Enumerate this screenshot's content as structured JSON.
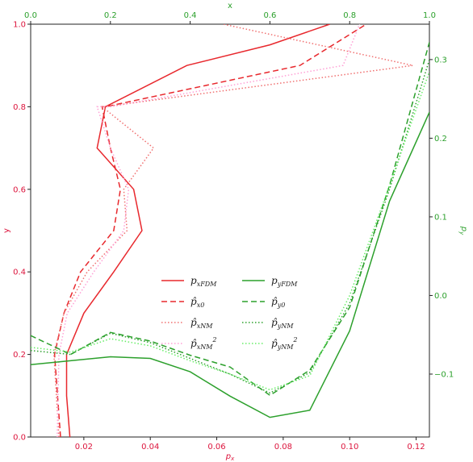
{
  "chart_data": {
    "type": "line",
    "axes": {
      "bottom": {
        "label": "p_x",
        "lim": [
          0.004,
          0.124
        ],
        "ticks": [
          0.02,
          0.04,
          0.06,
          0.08,
          0.1,
          0.12
        ],
        "tick_labels": [
          "0.02",
          "0.04",
          "0.06",
          "0.08",
          "0.10",
          "0.12"
        ],
        "color": "#dc143c"
      },
      "left": {
        "label": "y",
        "lim": [
          0,
          1
        ],
        "ticks": [
          0,
          0.2,
          0.4,
          0.6,
          0.8,
          1.0
        ],
        "tick_labels": [
          "0.0",
          "0.2",
          "0.4",
          "0.6",
          "0.8",
          "1.0"
        ],
        "color": "#dc143c"
      },
      "top": {
        "label": "x",
        "lim": [
          0,
          1
        ],
        "ticks": [
          0,
          0.2,
          0.4,
          0.6,
          0.8,
          1.0
        ],
        "tick_labels": [
          "0.0",
          "0.2",
          "0.4",
          "0.6",
          "0.8",
          "1.0"
        ],
        "color": "#2ca02c"
      },
      "right": {
        "label": "p_y",
        "lim": [
          -0.18,
          0.345
        ],
        "ticks": [
          -0.1,
          0.0,
          0.1,
          0.2,
          0.3
        ],
        "tick_labels": [
          "−0.1",
          "0.0",
          "0.1",
          "0.2",
          "0.3"
        ],
        "color": "#2ca02c"
      }
    },
    "grid": false,
    "legend_position": "center",
    "red_series": [
      {
        "name": "p_{xFDM}",
        "legend_text": "p",
        "legend_sub": "xFDM",
        "legend_hat": false,
        "legend_sup": "",
        "color": "#e8282d",
        "dash": "",
        "x": [
          0.0158,
          0.0148,
          0.0148,
          0.02,
          0.029,
          0.0375,
          0.035,
          0.024,
          0.0265,
          0.051,
          0.076,
          0.094
        ],
        "y": [
          0.0,
          0.1,
          0.2,
          0.3,
          0.4,
          0.5,
          0.6,
          0.7,
          0.8,
          0.9,
          0.95,
          1.0
        ]
      },
      {
        "name": "p̂_{x0}",
        "legend_text": "p",
        "legend_sub": "x0",
        "legend_hat": true,
        "legend_sup": "",
        "color": "#e8282d",
        "dash": "7,4",
        "x": [
          0.013,
          0.0112,
          0.014,
          0.019,
          0.029,
          0.031,
          0.028,
          0.0255,
          0.0265,
          0.085,
          0.105
        ],
        "y": [
          0.0,
          0.2,
          0.3,
          0.4,
          0.5,
          0.6,
          0.7,
          0.8,
          0.8,
          0.9,
          1.0
        ]
      },
      {
        "name": "p̂_{xNM}",
        "legend_text": "p",
        "legend_sub": "xNM",
        "legend_hat": true,
        "legend_sup": "",
        "color": "#f07070",
        "dash": "1.5,2.5",
        "x": [
          0.0125,
          0.011,
          0.014,
          0.021,
          0.033,
          0.032,
          0.041,
          0.0255,
          0.026,
          0.119,
          0.062
        ],
        "y": [
          0.0,
          0.2,
          0.3,
          0.4,
          0.5,
          0.6,
          0.7,
          0.8,
          0.8,
          0.9,
          1.0
        ]
      },
      {
        "name": "p̂_{xNM}^2",
        "legend_text": "p",
        "legend_sub": "xNM",
        "legend_hat": true,
        "legend_sup": "2",
        "color": "#ff9fd5",
        "dash": "1.5,2.5",
        "x": [
          0.012,
          0.0125,
          0.015,
          0.023,
          0.032,
          0.0335,
          0.028,
          0.024,
          0.028,
          0.098,
          0.103
        ],
        "y": [
          0.0,
          0.2,
          0.3,
          0.4,
          0.5,
          0.6,
          0.7,
          0.8,
          0.8,
          0.9,
          1.0
        ]
      }
    ],
    "green_series": [
      {
        "name": "p_{yFDM}",
        "legend_text": "p",
        "legend_sub": "yFDM",
        "legend_hat": false,
        "legend_sup": "",
        "color": "#2ca02c",
        "dash": "",
        "x": [
          0.0,
          0.1,
          0.2,
          0.3,
          0.4,
          0.5,
          0.6,
          0.7,
          0.8,
          0.9,
          1.0
        ],
        "y": [
          -0.088,
          -0.083,
          -0.078,
          -0.08,
          -0.097,
          -0.128,
          -0.155,
          -0.146,
          -0.045,
          0.12,
          0.233
        ]
      },
      {
        "name": "p̂_{y0}",
        "legend_text": "p",
        "legend_sub": "y0",
        "legend_hat": true,
        "legend_sup": "",
        "color": "#2ca02c",
        "dash": "7,4",
        "x": [
          0.0,
          0.1,
          0.2,
          0.3,
          0.4,
          0.5,
          0.6,
          0.7,
          0.8,
          0.9,
          1.0
        ],
        "y": [
          -0.051,
          -0.075,
          -0.047,
          -0.058,
          -0.076,
          -0.091,
          -0.127,
          -0.095,
          -0.015,
          0.14,
          0.322
        ]
      },
      {
        "name": "p̂_{yNM}",
        "legend_text": "p",
        "legend_sub": "yNM",
        "legend_hat": true,
        "legend_sup": "",
        "color": "#2ca02c",
        "dash": "1.5,2.5",
        "x": [
          0.0,
          0.1,
          0.2,
          0.3,
          0.4,
          0.5,
          0.6,
          0.7,
          0.8,
          0.9,
          1.0
        ],
        "y": [
          -0.07,
          -0.075,
          -0.048,
          -0.06,
          -0.08,
          -0.1,
          -0.124,
          -0.098,
          -0.01,
          0.135,
          0.3
        ]
      },
      {
        "name": "p̂_{yNM}^2",
        "legend_text": "p",
        "legend_sub": "yNM",
        "legend_hat": true,
        "legend_sup": "2",
        "color": "#66ee66",
        "dash": "1.5,2.5",
        "x": [
          0.0,
          0.1,
          0.2,
          0.3,
          0.4,
          0.5,
          0.6,
          0.7,
          0.8,
          0.9,
          1.0
        ],
        "y": [
          -0.066,
          -0.072,
          -0.055,
          -0.064,
          -0.083,
          -0.1,
          -0.12,
          -0.102,
          0.0,
          0.14,
          0.285
        ]
      }
    ]
  }
}
